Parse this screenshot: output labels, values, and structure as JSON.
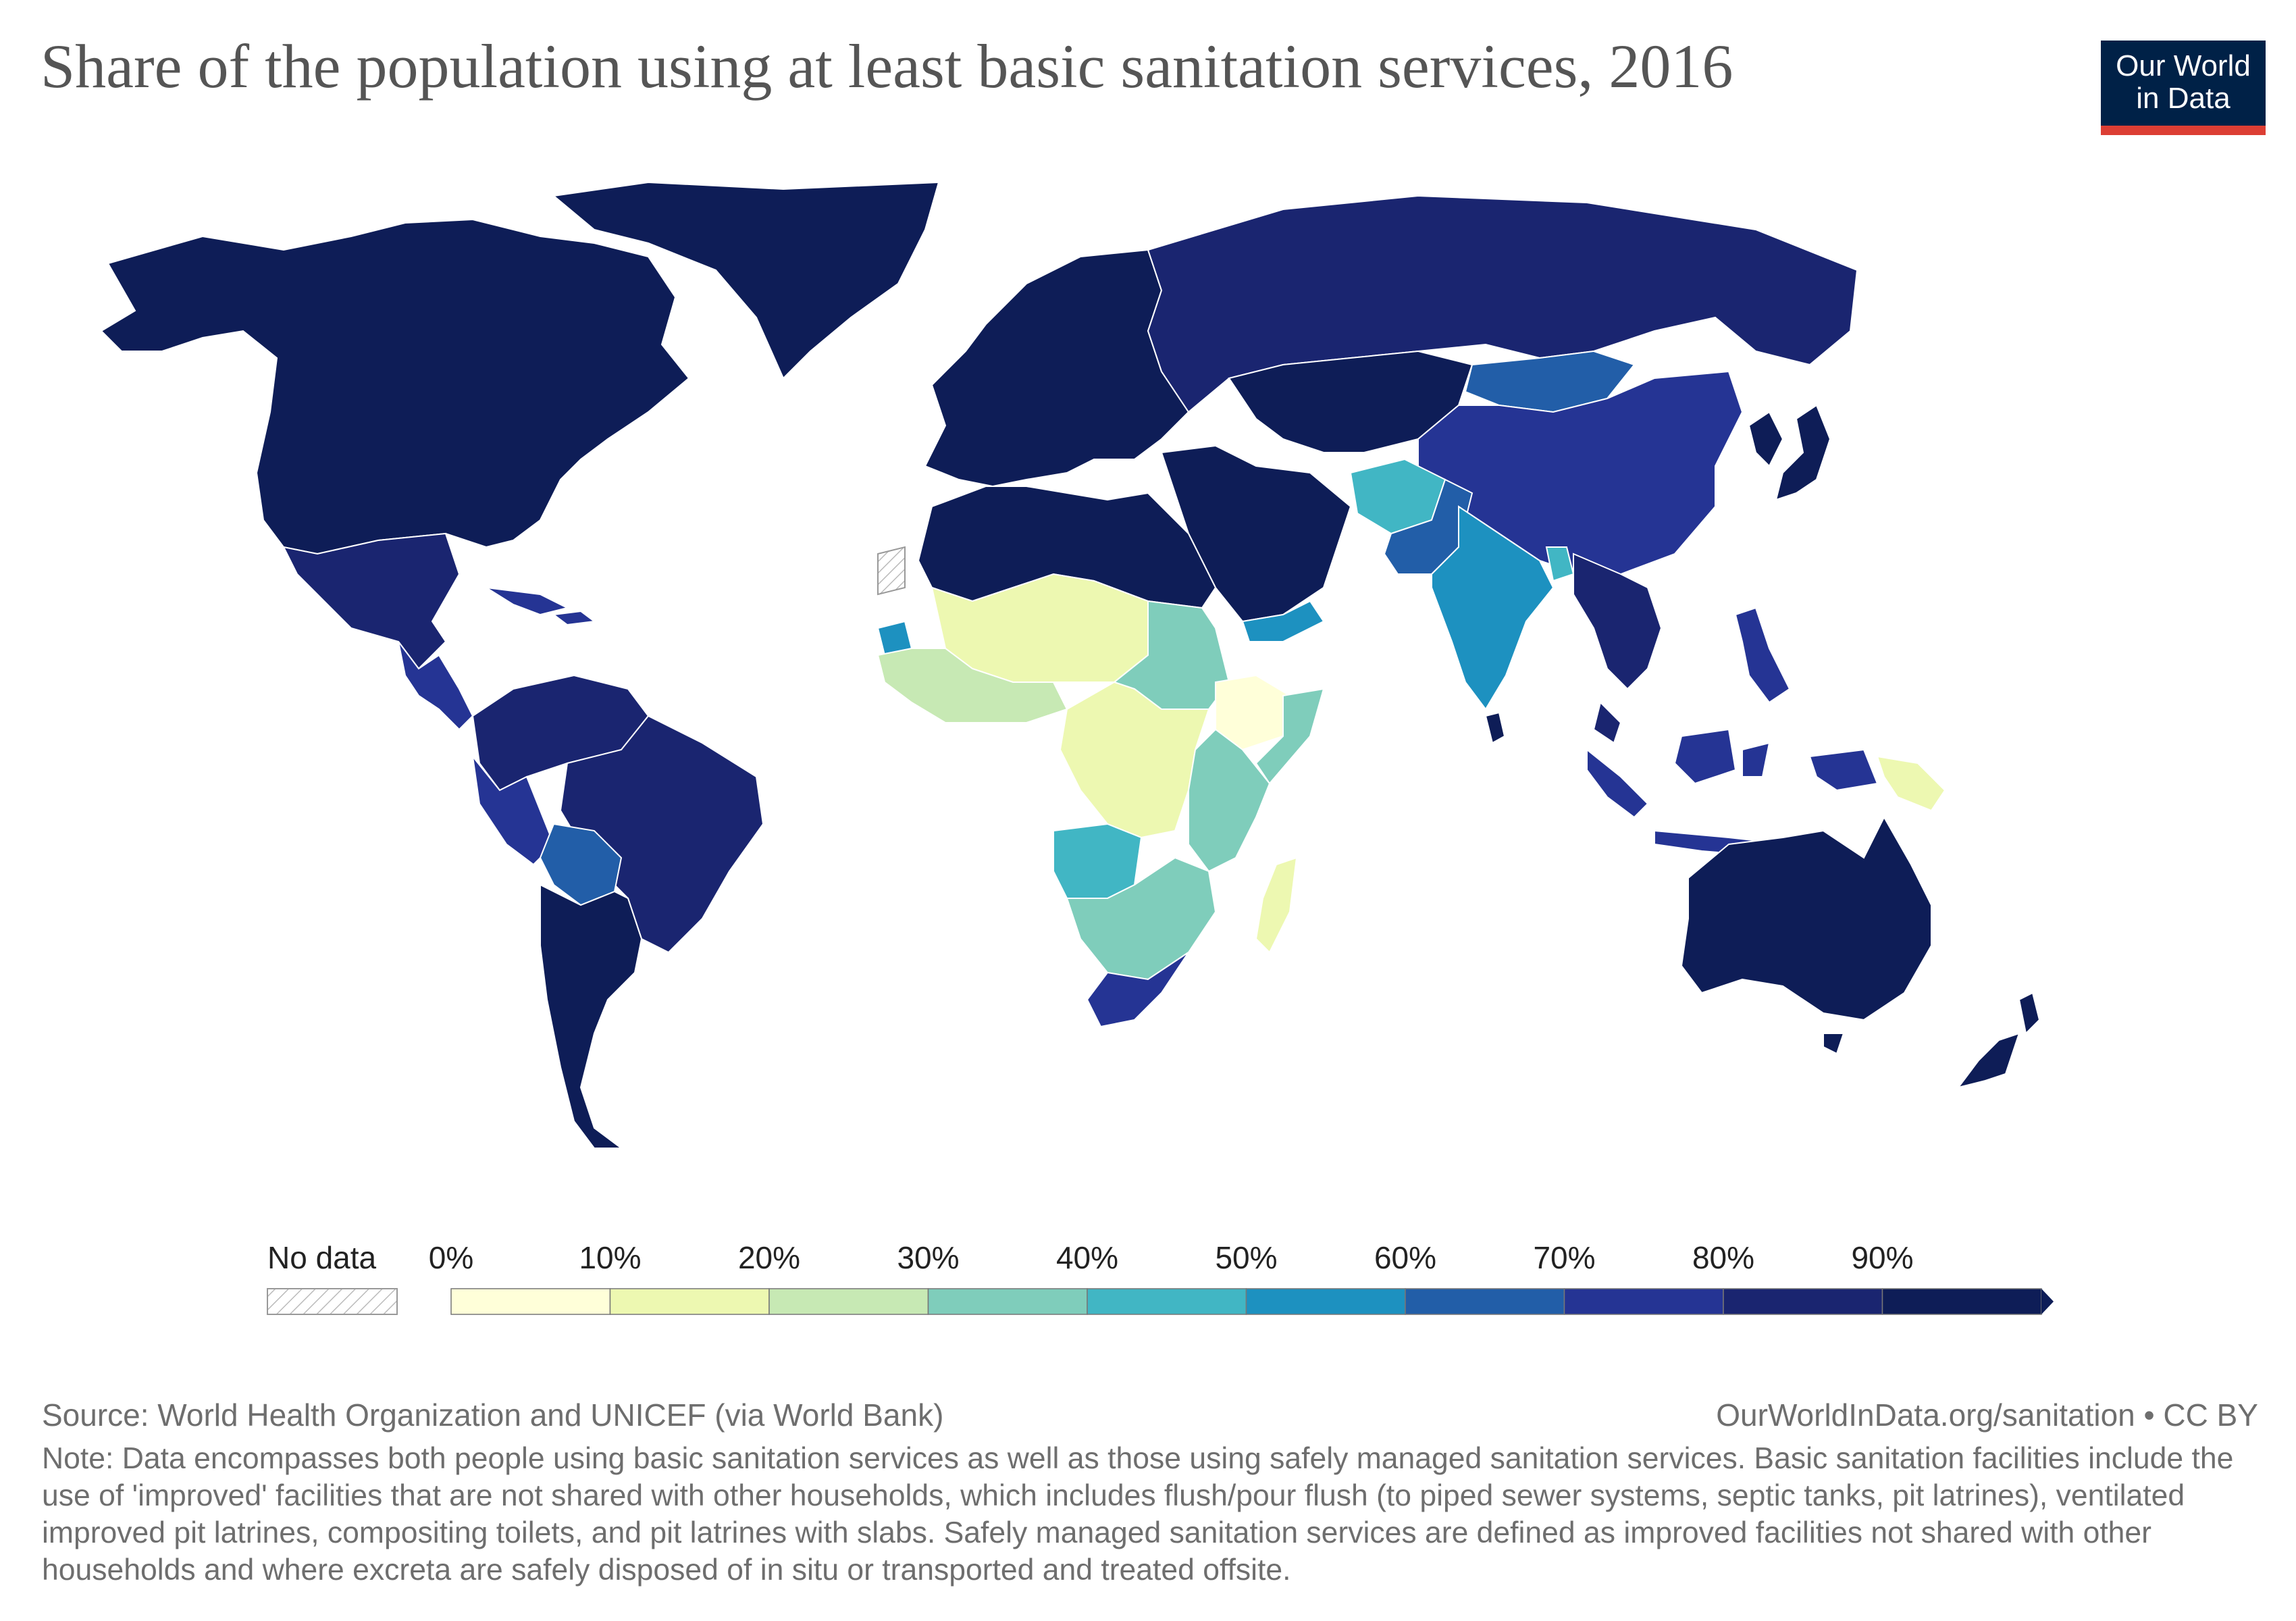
{
  "header": {
    "title": "Share of the population using at least basic sanitation services, 2016",
    "logo_line1": "Our World",
    "logo_line2": "in Data"
  },
  "colors": {
    "c0": "#ffffd9",
    "c1": "#edf8b1",
    "c2": "#c7e9b4",
    "c3": "#7fcdbb",
    "c4": "#41b6c4",
    "c5": "#1d91c0",
    "c6": "#225ea8",
    "c7": "#253494",
    "c8": "#1a2570",
    "c9": "#0e1d57",
    "ocean": "#ffffff",
    "border": "#ffffff"
  },
  "legend": {
    "no_data_label": "No data",
    "ticks": [
      "0%",
      "10%",
      "20%",
      "30%",
      "40%",
      "50%",
      "60%",
      "70%",
      "80%",
      "90%"
    ]
  },
  "regions": [
    {
      "name": "north-america",
      "value": 99
    },
    {
      "name": "greenland",
      "value": 99
    },
    {
      "name": "mexico",
      "value": 88
    },
    {
      "name": "central-america",
      "value": 78
    },
    {
      "name": "caribbean",
      "value": 70
    },
    {
      "name": "northern-south-america",
      "value": 85
    },
    {
      "name": "brazil",
      "value": 88
    },
    {
      "name": "peru",
      "value": 75
    },
    {
      "name": "bolivia",
      "value": 60
    },
    {
      "name": "southern-cone",
      "value": 95
    },
    {
      "name": "europe",
      "value": 98
    },
    {
      "name": "russia",
      "value": 89
    },
    {
      "name": "central-asia",
      "value": 97
    },
    {
      "name": "mongolia",
      "value": 60
    },
    {
      "name": "china",
      "value": 78
    },
    {
      "name": "japan-korea",
      "value": 99
    },
    {
      "name": "middle-east",
      "value": 96
    },
    {
      "name": "afghanistan",
      "value": 43
    },
    {
      "name": "pakistan",
      "value": 60
    },
    {
      "name": "india",
      "value": 54
    },
    {
      "name": "sri-lanka",
      "value": 94
    },
    {
      "name": "bangladesh",
      "value": 48
    },
    {
      "name": "southeast-asia",
      "value": 85
    },
    {
      "name": "philippines",
      "value": 75
    },
    {
      "name": "indonesia",
      "value": 70
    },
    {
      "name": "papua-new-guinea",
      "value": 18
    },
    {
      "name": "australia",
      "value": 100
    },
    {
      "name": "new-zealand",
      "value": 100
    },
    {
      "name": "north-africa",
      "value": 90
    },
    {
      "name": "west-sahel",
      "value": 15
    },
    {
      "name": "west-africa-coast",
      "value": 20
    },
    {
      "name": "senegal",
      "value": 50
    },
    {
      "name": "sudan",
      "value": 35
    },
    {
      "name": "ethiopia",
      "value": 7
    },
    {
      "name": "somalia",
      "value": 35
    },
    {
      "name": "central-africa",
      "value": 15
    },
    {
      "name": "east-africa",
      "value": 30
    },
    {
      "name": "angola",
      "value": 45
    },
    {
      "name": "southern-africa-mid",
      "value": 35
    },
    {
      "name": "madagascar",
      "value": 10
    },
    {
      "name": "south-africa",
      "value": 75
    },
    {
      "name": "yemen-gulf",
      "value": 55
    }
  ],
  "footer": {
    "source": "Source: World Health Organization and UNICEF (via World Bank)",
    "url": "OurWorldInData.org/sanitation • CC BY",
    "note": "Note: Data encompasses both people using basic sanitation services as well as those using safely managed sanitation services. Basic sanitation facilities include the use of 'improved' facilities that are not shared with other households, which includes flush/pour flush (to piped sewer systems, septic tanks, pit latrines), ventilated improved pit latrines, compositing toilets, and pit latrines with slabs. Safely managed sanitation services are defined as improved facilities not shared with other households and where excreta are safely disposed of in situ or transported and treated offsite."
  }
}
